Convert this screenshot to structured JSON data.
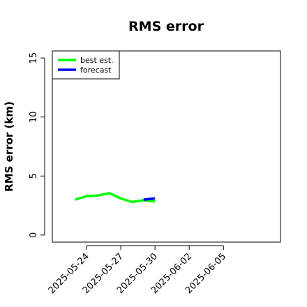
{
  "chart_data": {
    "type": "line",
    "title": "RMS error",
    "y_label": "RMS error (km)",
    "xlim": [
      "2025-05-21",
      "2025-06-10"
    ],
    "xticks": [
      "2025-05-24",
      "2025-05-27",
      "2025-05-30",
      "2025-06-02",
      "2025-06-05"
    ],
    "ylim": [
      -0.6,
      15.6
    ],
    "yticks": [
      0,
      5,
      10,
      15
    ],
    "legend": "top-left",
    "series": [
      {
        "name": "best est.",
        "color": "#00ff00",
        "x": [
          "2025-05-23",
          "2025-05-24",
          "2025-05-25",
          "2025-05-26",
          "2025-05-27",
          "2025-05-28",
          "2025-05-29",
          "2025-05-30"
        ],
        "values": [
          3.0,
          3.3,
          3.35,
          3.55,
          3.1,
          2.8,
          2.95,
          2.85
        ]
      },
      {
        "name": "forecast",
        "color": "#0000ff",
        "x": [
          "2025-05-29",
          "2025-05-30"
        ],
        "values": [
          3.0,
          3.1
        ]
      }
    ]
  }
}
